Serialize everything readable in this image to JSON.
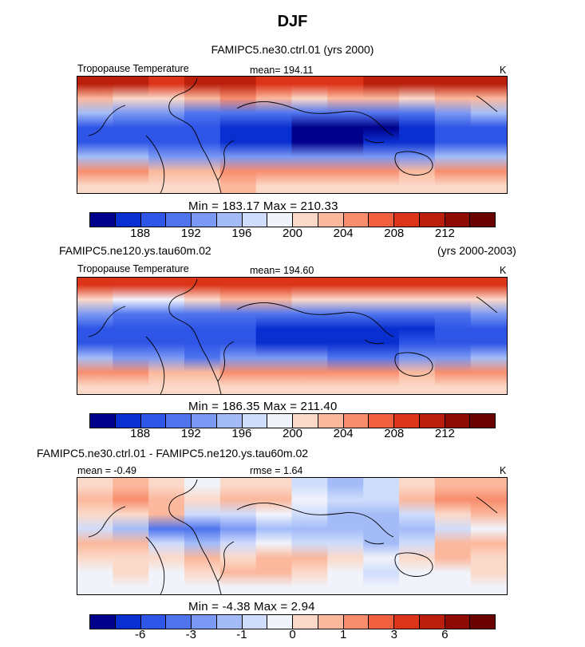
{
  "page_title": "DJF",
  "chart_data": [
    {
      "type": "heatmap",
      "title": "FAMIPC5.ne30.ctrl.01 (yrs 2000)",
      "title_left": "",
      "title_right": "",
      "field_label": "Tropopause Temperature",
      "stat_text": "mean= 194.11",
      "units": "K",
      "min_max_text": "Min = 183.17 Max = 210.33",
      "min": 183.17,
      "max": 210.33,
      "mean": 194.11,
      "levels": [
        186,
        188,
        190,
        192,
        194,
        196,
        198,
        200,
        202,
        204,
        206,
        208,
        210,
        212,
        214
      ],
      "tick_labels": [
        "188",
        "192",
        "196",
        "200",
        "204",
        "208",
        "212"
      ],
      "colors": [
        "#00008b",
        "#0a2fd0",
        "#2e55e6",
        "#4f74ee",
        "#7a98f4",
        "#a3bcf8",
        "#cfdcfb",
        "#f1f3fb",
        "#fbd9c9",
        "#fbb89d",
        "#f88e6e",
        "#f0603f",
        "#db3419",
        "#ba1f0c",
        "#8f0b05",
        "#6a0000"
      ],
      "field": [
        {
          "lat": 80,
          "bands": [
            13,
            13,
            12,
            13,
            13,
            12,
            12,
            12,
            13,
            13,
            13,
            13
          ]
        },
        {
          "lat": 50,
          "bands": [
            9,
            8,
            8,
            9,
            10,
            9,
            8,
            9,
            9,
            8,
            9,
            9
          ]
        },
        {
          "lat": 30,
          "bands": [
            5,
            4,
            4,
            3,
            3,
            3,
            3,
            3,
            3,
            3,
            4,
            5
          ]
        },
        {
          "lat": 10,
          "bands": [
            2,
            2,
            2,
            2,
            1,
            1,
            0,
            0,
            0,
            1,
            2,
            2
          ]
        },
        {
          "lat": -10,
          "bands": [
            2,
            2,
            2,
            2,
            1,
            1,
            0,
            0,
            1,
            1,
            2,
            2
          ]
        },
        {
          "lat": -30,
          "bands": [
            5,
            5,
            4,
            4,
            4,
            4,
            4,
            4,
            4,
            4,
            5,
            5
          ]
        },
        {
          "lat": -50,
          "bands": [
            10,
            10,
            9,
            9,
            10,
            10,
            10,
            10,
            10,
            9,
            10,
            10
          ]
        },
        {
          "lat": -80,
          "bands": [
            8,
            8,
            8,
            8,
            9,
            8,
            8,
            8,
            8,
            8,
            8,
            8
          ]
        }
      ]
    },
    {
      "type": "heatmap",
      "title": "",
      "title_left": "FAMIPC5.ne120.ys.tau60m.02",
      "title_right": "(yrs 2000-2003)",
      "field_label": "Tropopause Temperature",
      "stat_text": "mean= 194.60",
      "units": "K",
      "min_max_text": "Min = 186.35 Max = 211.40",
      "min": 186.35,
      "max": 211.4,
      "mean": 194.6,
      "levels": [
        186,
        188,
        190,
        192,
        194,
        196,
        198,
        200,
        202,
        204,
        206,
        208,
        210,
        212,
        214
      ],
      "tick_labels": [
        "188",
        "192",
        "196",
        "200",
        "204",
        "208",
        "212"
      ],
      "colors": [
        "#00008b",
        "#0a2fd0",
        "#2e55e6",
        "#4f74ee",
        "#7a98f4",
        "#a3bcf8",
        "#cfdcfb",
        "#f1f3fb",
        "#fbd9c9",
        "#fbb89d",
        "#f88e6e",
        "#f0603f",
        "#db3419",
        "#ba1f0c",
        "#8f0b05",
        "#6a0000"
      ],
      "field": [
        {
          "lat": 80,
          "bands": [
            12,
            12,
            12,
            12,
            12,
            12,
            12,
            12,
            12,
            12,
            12,
            12
          ]
        },
        {
          "lat": 50,
          "bands": [
            8,
            7,
            7,
            8,
            9,
            9,
            8,
            8,
            8,
            8,
            8,
            8
          ]
        },
        {
          "lat": 30,
          "bands": [
            4,
            3,
            3,
            3,
            3,
            3,
            3,
            3,
            3,
            3,
            3,
            4
          ]
        },
        {
          "lat": 10,
          "bands": [
            2,
            2,
            2,
            2,
            2,
            1,
            1,
            1,
            1,
            1,
            2,
            2
          ]
        },
        {
          "lat": -10,
          "bands": [
            2,
            2,
            2,
            2,
            2,
            1,
            1,
            1,
            1,
            2,
            2,
            2
          ]
        },
        {
          "lat": -30,
          "bands": [
            5,
            4,
            4,
            3,
            4,
            4,
            4,
            3,
            3,
            4,
            4,
            5
          ]
        },
        {
          "lat": -50,
          "bands": [
            10,
            10,
            9,
            9,
            10,
            10,
            10,
            10,
            10,
            9,
            10,
            10
          ]
        },
        {
          "lat": -80,
          "bands": [
            8,
            8,
            8,
            8,
            8,
            8,
            8,
            8,
            8,
            8,
            8,
            8
          ]
        }
      ]
    },
    {
      "type": "heatmap",
      "title": "",
      "title_left": "FAMIPC5.ne30.ctrl.01 - FAMIPC5.ne120.ys.tau60m.02",
      "title_right": "",
      "field_label": "mean = -0.49",
      "stat_text": "rmse = 1.64",
      "units": "K",
      "min_max_text": "Min = -4.38 Max = 2.94",
      "min": -4.38,
      "max": 2.94,
      "mean": -0.49,
      "rmse": 1.64,
      "levels": [
        -8,
        -7,
        -6,
        -5,
        -4,
        -3,
        -2,
        -1,
        0,
        1,
        2,
        3,
        4,
        5,
        6
      ],
      "tick_labels": [
        "-6",
        "-3",
        "-1",
        "0",
        "1",
        "3",
        "6"
      ],
      "colors": [
        "#00008b",
        "#0a2fd0",
        "#2e55e6",
        "#4f74ee",
        "#7a98f4",
        "#a3bcf8",
        "#cfdcfb",
        "#f1f3fb",
        "#fbd9c9",
        "#fbb89d",
        "#f88e6e",
        "#f0603f",
        "#db3419",
        "#ba1f0c",
        "#8f0b05",
        "#6a0000"
      ],
      "field": [
        {
          "lat": 80,
          "bands": [
            8,
            9,
            8,
            7,
            8,
            8,
            6,
            5,
            6,
            8,
            9,
            9
          ]
        },
        {
          "lat": 50,
          "bands": [
            9,
            10,
            9,
            8,
            9,
            9,
            7,
            6,
            6,
            9,
            10,
            10
          ]
        },
        {
          "lat": 30,
          "bands": [
            8,
            8,
            9,
            6,
            6,
            7,
            6,
            5,
            5,
            6,
            8,
            9
          ]
        },
        {
          "lat": 10,
          "bands": [
            6,
            5,
            3,
            3,
            4,
            5,
            5,
            5,
            5,
            5,
            6,
            7
          ]
        },
        {
          "lat": -10,
          "bands": [
            9,
            9,
            6,
            5,
            6,
            7,
            6,
            6,
            5,
            6,
            9,
            9
          ]
        },
        {
          "lat": -30,
          "bands": [
            8,
            8,
            8,
            9,
            8,
            9,
            9,
            8,
            7,
            8,
            9,
            8
          ]
        },
        {
          "lat": -50,
          "bands": [
            7,
            8,
            7,
            8,
            9,
            9,
            8,
            7,
            6,
            7,
            7,
            8
          ]
        },
        {
          "lat": -80,
          "bands": [
            7,
            7,
            7,
            7,
            7,
            7,
            7,
            7,
            7,
            7,
            7,
            7
          ]
        }
      ]
    }
  ]
}
